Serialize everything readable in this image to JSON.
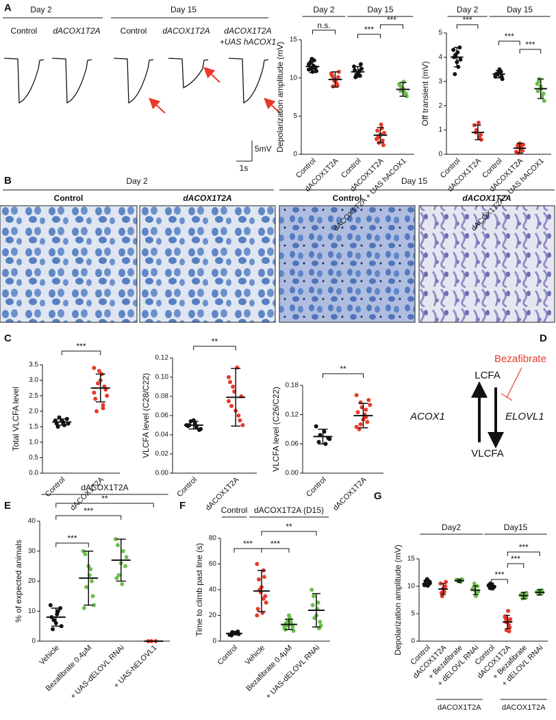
{
  "panel_letters": [
    "A",
    "B",
    "C",
    "D",
    "E",
    "F",
    "G"
  ],
  "traces": {
    "days": [
      "Day 2",
      "Day 15"
    ],
    "labels": [
      [
        "Control"
      ],
      [
        "dACOX1T2A"
      ],
      [
        "Control"
      ],
      [
        "dACOX1T2A"
      ],
      [
        "dACOX1T2A",
        "+UAS hACOX1"
      ]
    ],
    "scale_y": "5mV",
    "scale_x": "1s"
  },
  "histology": {
    "days": [
      "Day 2",
      "Day 15"
    ],
    "labels": [
      "Control",
      "dACOX1T2A",
      "Control",
      "dACOX1T2A"
    ]
  },
  "pathway": {
    "top": "LCFA",
    "bottom": "VLCFA",
    "up": "ACOX1",
    "down": "ELOVL1",
    "inhibitor": "Bezafibrate"
  },
  "plots": [
    {
      "ylabel": "Depolarization amplitude (mV)",
      "ylim": [
        0,
        15
      ],
      "yticks": [
        0,
        5,
        10,
        15
      ],
      "headers": [
        "Day 2",
        "Day 15"
      ],
      "brackets": [
        "n.s.",
        "***",
        "***"
      ],
      "groups": [
        {
          "name": "Control",
          "color": "#111111",
          "mean": 11.5,
          "sd": 0.8,
          "points": [
            11.8,
            12.3,
            11.2,
            10.9,
            11.6,
            12.0,
            11.4,
            10.8,
            11.9,
            11.3,
            12.5,
            11.1
          ]
        },
        {
          "name": "dACOX1T2A",
          "color": "#e8392a",
          "mean": 9.8,
          "sd": 1,
          "points": [
            10.5,
            9.2,
            9.9,
            10.8,
            9.5,
            8.9,
            10.1,
            9.7,
            10.3,
            9.0,
            9.6,
            10.6
          ]
        },
        {
          "name": "Control",
          "color": "#111111",
          "mean": 10.8,
          "sd": 0.7,
          "points": [
            11.5,
            10.9,
            10.4,
            11.2,
            10.7,
            10.1,
            11.8,
            10.6,
            11.0,
            10.3
          ]
        },
        {
          "name": "dACOX1T2A",
          "color": "#e8392a",
          "mean": 2.5,
          "sd": 1,
          "points": [
            2.0,
            3.4,
            1.5,
            2.8,
            3.9,
            2.2,
            1.2,
            2.6,
            3.1,
            1.8,
            2.4
          ]
        },
        {
          "name": "dACOX1T2A + UAS hACOX1",
          "color": "#6dbf4b",
          "mean": 8.5,
          "sd": 0.9,
          "points": [
            9.2,
            8.1,
            8.8,
            7.6,
            9.5,
            8.3,
            7.9,
            8.6,
            9.0,
            8.0
          ]
        }
      ]
    },
    {
      "ylabel": "Off transient (mV)",
      "ylim": [
        0,
        5
      ],
      "yticks": [
        0,
        1,
        2,
        3,
        4,
        5
      ],
      "headers": [
        "Day 2",
        "Day 15"
      ],
      "brackets": [
        "***",
        "***",
        "***"
      ],
      "groups": [
        {
          "name": "Control",
          "color": "#111111",
          "mean": 4.0,
          "sd": 0.4,
          "points": [
            4.3,
            3.6,
            4.1,
            3.9,
            4.2,
            3.3,
            4.4,
            3.8,
            4.0
          ]
        },
        {
          "name": "dACOX1T2A",
          "color": "#e8392a",
          "mean": 0.9,
          "sd": 0.3,
          "points": [
            1.2,
            0.7,
            1.0,
            0.6,
            1.3,
            0.9,
            0.8
          ]
        },
        {
          "name": "Control",
          "color": "#111111",
          "mean": 3.3,
          "sd": 0.15,
          "points": [
            3.2,
            3.4,
            3.3,
            3.1,
            3.5,
            3.3,
            3.2,
            3.4,
            3.3,
            3.4
          ]
        },
        {
          "name": "dACOX1T2A",
          "color": "#e8392a",
          "mean": 0.25,
          "sd": 0.2,
          "points": [
            0.1,
            0.3,
            0.05,
            0.4,
            0.2,
            0.35,
            0.15,
            0.45
          ]
        },
        {
          "name": "dACOX1T2A + UAS hACOX1",
          "color": "#6dbf4b",
          "mean": 2.7,
          "sd": 0.4,
          "points": [
            2.9,
            2.4,
            3.1,
            2.2,
            2.7,
            3.0,
            2.5,
            2.8,
            2.6
          ]
        }
      ]
    },
    {
      "ylabel": "Total VLCFA level",
      "ylim": [
        0,
        3.5
      ],
      "yticks": [
        {
          "value": 0,
          "label": "0.0"
        },
        0.5,
        {
          "value": 1,
          "label": "1.0"
        },
        1.5,
        {
          "value": 2,
          "label": "2.0"
        },
        2.5,
        {
          "value": 3,
          "label": "3.0"
        },
        3.5
      ],
      "brackets": [
        "***"
      ],
      "groups": [
        {
          "name": "Control",
          "color": "#111111",
          "mean": 1.65,
          "sd": 0.1,
          "points": [
            1.7,
            1.55,
            1.8,
            1.6,
            1.65,
            1.5,
            1.75,
            1.7,
            1.6
          ]
        },
        {
          "name": "dACOX1T2A",
          "color": "#e8392a",
          "mean": 2.75,
          "sd": 0.45,
          "points": [
            3.4,
            2.2,
            2.9,
            2.5,
            3.2,
            2.0,
            2.7,
            3.0,
            2.4,
            2.8,
            3.3,
            2.6,
            2.1
          ]
        }
      ]
    },
    {
      "ylabel": "VLCFA level (C28/C22)",
      "ylim": [
        0,
        0.12
      ],
      "yticks": [
        {
          "value": 0,
          "label": "0.00"
        },
        {
          "value": 0.02,
          "label": "0.02"
        },
        {
          "value": 0.04,
          "label": "0.04"
        },
        {
          "value": 0.06,
          "label": "0.06"
        },
        {
          "value": 0.08,
          "label": "0.08"
        },
        {
          "value": 0.1,
          "label": "0.10"
        },
        {
          "value": 0.12,
          "label": "0.12"
        }
      ],
      "brackets": [
        "**"
      ],
      "groups": [
        {
          "name": "Control",
          "color": "#111111",
          "mean": 0.05,
          "sd": 0.004,
          "points": [
            0.05,
            0.048,
            0.054,
            0.046,
            0.052,
            0.05,
            0.045,
            0.055,
            0.049
          ]
        },
        {
          "name": "dACOX1T2A",
          "color": "#e8392a",
          "mean": 0.079,
          "sd": 0.03,
          "points": [
            0.1,
            0.06,
            0.09,
            0.05,
            0.11,
            0.07,
            0.08,
            0.065,
            0.095,
            0.055,
            0.085,
            0.075
          ]
        }
      ]
    },
    {
      "ylabel": "VLCFA level (C26/C22)",
      "ylim": [
        0,
        0.18
      ],
      "yticks": [
        {
          "value": 0,
          "label": "0.00"
        },
        {
          "value": 0.06,
          "label": "0.06"
        },
        {
          "value": 0.12,
          "label": "0.12"
        },
        {
          "value": 0.18,
          "label": "0.18"
        }
      ],
      "brackets": [
        "**"
      ],
      "groups": [
        {
          "name": "Control",
          "color": "#111111",
          "mean": 0.075,
          "sd": 0.015,
          "points": [
            0.096,
            0.06,
            0.078,
            0.07,
            0.085,
            0.064,
            0.072
          ]
        },
        {
          "name": "dACOX1T2A",
          "color": "#e8392a",
          "mean": 0.118,
          "sd": 0.025,
          "points": [
            0.16,
            0.13,
            0.1,
            0.14,
            0.12,
            0.09,
            0.15,
            0.11,
            0.125,
            0.105,
            0.135,
            0.095,
            0.115,
            0.145
          ]
        }
      ]
    },
    {
      "ylabel": "% of expected animals",
      "ylim": [
        0,
        40
      ],
      "yticks": [
        0,
        10,
        20,
        30,
        40
      ],
      "headers": [
        "dACOX1T2A"
      ],
      "brackets": [
        "***",
        "***",
        "**"
      ],
      "groups": [
        {
          "name": "Vehicle",
          "color": "#111111",
          "mean": 8,
          "sd": 3,
          "points": [
            12,
            10,
            7,
            5,
            9,
            4,
            11,
            6,
            8
          ]
        },
        {
          "name": "Bezafibrate 0.4μM",
          "color": "#6dbf4b",
          "mean": 21,
          "sd": 9,
          "points": [
            30,
            24,
            18,
            12,
            22,
            29,
            15,
            25,
            11,
            20
          ]
        },
        {
          "name": "+ UAS-dELOVL RNAi",
          "color": "#6dbf4b",
          "mean": 27,
          "sd": 7,
          "points": [
            34,
            30,
            22,
            28,
            19,
            32,
            25,
            26,
            21
          ]
        },
        {
          "name": "+ UAS-hELOVL1",
          "color": "#e8392a",
          "mean": 0,
          "sd": 0,
          "points": [
            0,
            0,
            0
          ]
        }
      ]
    },
    {
      "ylabel": "Time to climb past line (s)",
      "ylim": [
        0,
        80
      ],
      "yticks": [
        0,
        20,
        40,
        60,
        80
      ],
      "headers": [
        "Control",
        "dACOX1T2A (D15)"
      ],
      "brackets": [
        "***",
        "***",
        "**"
      ],
      "groups": [
        {
          "name": "Control",
          "color": "#111111",
          "mean": 6,
          "sd": 1,
          "points": [
            5,
            6,
            7,
            5.5,
            6.5,
            4.5,
            7.5,
            6,
            5,
            6
          ]
        },
        {
          "name": "Vehicle",
          "color": "#e8392a",
          "mean": 39,
          "sd": 16,
          "points": [
            60,
            55,
            40,
            30,
            22,
            48,
            35,
            42,
            25,
            50,
            38,
            20,
            33
          ]
        },
        {
          "name": "Bezafibrate 0.4μM",
          "color": "#6dbf4b",
          "mean": 13,
          "sd": 4,
          "points": [
            10,
            15,
            12,
            8,
            18,
            14,
            11,
            20,
            9,
            13,
            16,
            12
          ]
        },
        {
          "name": "+ UAS-dELOVL RNAi",
          "color": "#6dbf4b",
          "mean": 24,
          "sd": 13,
          "points": [
            40,
            30,
            18,
            12,
            25,
            35,
            15,
            20,
            28,
            10
          ]
        }
      ]
    },
    {
      "ylabel": "Depolarization amplitude (mV)",
      "ylim": [
        0,
        15
      ],
      "yticks": [
        0,
        5,
        10,
        15
      ],
      "headers": [
        "Day2",
        "Day15"
      ],
      "footers": [
        "dACOX1T2A",
        "dACOX1T2A"
      ],
      "brackets": [
        "***",
        "***",
        "***"
      ],
      "groups": [
        {
          "name": "Control",
          "color": "#111111",
          "mean": 10.5,
          "sd": 0.4,
          "points": [
            10.2,
            11,
            10.6,
            10.8,
            10.1,
            10.9,
            10.4,
            11.3,
            10.3,
            10.7
          ]
        },
        {
          "name": "dACOX1T2A",
          "color": "#e8392a",
          "mean": 9.5,
          "sd": 1,
          "points": [
            10.5,
            9,
            8.2,
            10.8,
            9.4,
            8.8,
            10,
            9.6
          ]
        },
        {
          "name": "+ Bezafibrate",
          "color": "#6dbf4b",
          "mean": 11,
          "sd": 0.3,
          "points": [
            11.2,
            10.8,
            11,
            11.3,
            10.9
          ]
        },
        {
          "name": "+ dELOVL RNAi",
          "color": "#6dbf4b",
          "mean": 9.3,
          "sd": 0.8,
          "points": [
            9.5,
            8.5,
            10.5,
            9,
            8.2,
            9.8,
            10,
            9.1
          ]
        },
        {
          "name": "Control",
          "color": "#111111",
          "mean": 10,
          "sd": 0.6,
          "points": [
            10.2,
            9.6,
            10.5,
            9.9,
            10.3,
            9.7
          ]
        },
        {
          "name": "dACOX1T2A",
          "color": "#e8392a",
          "mean": 3.5,
          "sd": 1.2,
          "points": [
            4.5,
            3,
            2,
            4,
            5.5,
            3.5,
            2.5,
            3.8,
            4.2,
            1.8
          ]
        },
        {
          "name": "+ Bezafibrate",
          "color": "#6dbf4b",
          "mean": 8.3,
          "sd": 0.6,
          "points": [
            8.5,
            8,
            7.8,
            8.8,
            8.2,
            8.6,
            7.9
          ]
        },
        {
          "name": "+ dELOVL RNAi",
          "color": "#6dbf4b",
          "mean": 8.9,
          "sd": 0.5,
          "points": [
            9,
            8.7,
            9.2,
            8.8,
            9.1,
            8.6,
            9.3
          ]
        }
      ]
    }
  ]
}
